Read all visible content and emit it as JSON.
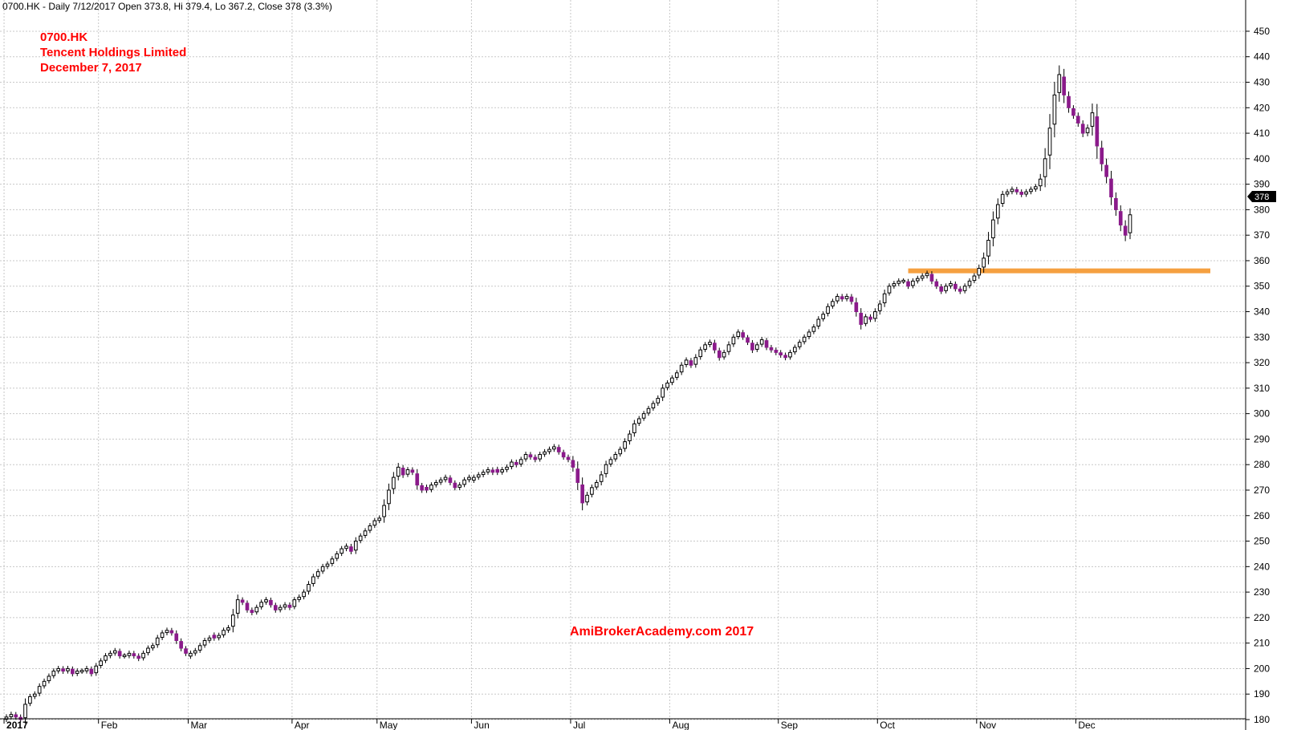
{
  "header": {
    "info": "0700.HK - Daily 7/12/2017 Open 373.8, Hi 379.4, Lo 367.2, Close 378 (3.3%)"
  },
  "titles": [
    "0700.HK",
    "Tencent Holdings Limited",
    "December 7, 2017"
  ],
  "watermark": "AmiBrokerAcademy.com  2017",
  "colors": {
    "up_fill": "#ffffff",
    "down_fill": "#8b1a8b",
    "wick": "#000000",
    "resistance": "#f5a040",
    "title": "#ff0000",
    "last_label_bg": "#000000"
  },
  "chart_data": {
    "type": "candlestick",
    "symbol": "0700.HK",
    "ylim": [
      175,
      452
    ],
    "yticks": [
      180,
      190,
      200,
      210,
      220,
      230,
      240,
      250,
      260,
      270,
      280,
      290,
      300,
      310,
      320,
      330,
      340,
      350,
      360,
      370,
      380,
      390,
      400,
      410,
      420,
      430,
      440,
      450
    ],
    "y_axis_side": "right",
    "grid": true,
    "months": [
      {
        "label": "2017",
        "bold": true
      },
      {
        "label": "Feb"
      },
      {
        "label": "Mar"
      },
      {
        "label": "Apr"
      },
      {
        "label": "May"
      },
      {
        "label": "Jun"
      },
      {
        "label": "Jul"
      },
      {
        "label": "Aug"
      },
      {
        "label": "Sep"
      },
      {
        "label": "Oct"
      },
      {
        "label": "Nov"
      },
      {
        "label": "Dec"
      }
    ],
    "month_start_index": [
      0,
      20,
      39,
      61,
      79,
      99,
      120,
      141,
      164,
      185,
      206,
      227
    ],
    "last_value": "378",
    "resistance": {
      "value": 356,
      "from_index": 191,
      "to_index": 255
    },
    "close": [
      181,
      182,
      181,
      180,
      186,
      189,
      190,
      193,
      195,
      197,
      199,
      200,
      199,
      200,
      198,
      199,
      199,
      200,
      198,
      201,
      203,
      205,
      206,
      207,
      205,
      205,
      206,
      205,
      204,
      206,
      208,
      209,
      212,
      214,
      215,
      214,
      211,
      208,
      206,
      206,
      207,
      209,
      211,
      212,
      212,
      213,
      215,
      216,
      221,
      227,
      226,
      223,
      222,
      224,
      226,
      227,
      225,
      223,
      224,
      225,
      224,
      227,
      228,
      230,
      233,
      236,
      238,
      240,
      241,
      243,
      245,
      247,
      248,
      246,
      250,
      252,
      254,
      256,
      258,
      259,
      264,
      270,
      275,
      279,
      276,
      278,
      277,
      272,
      270,
      270,
      272,
      273,
      274,
      275,
      273,
      271,
      272,
      274,
      275,
      275,
      276,
      277,
      278,
      277,
      277,
      278,
      279,
      281,
      280,
      282,
      284,
      283,
      282,
      284,
      285,
      286,
      287,
      285,
      283,
      282,
      279,
      273,
      265,
      268,
      271,
      273,
      276,
      280,
      282,
      284,
      286,
      289,
      292,
      296,
      298,
      300,
      302,
      304,
      306,
      310,
      312,
      314,
      316,
      319,
      321,
      319,
      322,
      325,
      327,
      328,
      325,
      322,
      324,
      327,
      330,
      332,
      330,
      328,
      325,
      327,
      329,
      326,
      325,
      324,
      323,
      322,
      324,
      326,
      328,
      330,
      332,
      334,
      337,
      339,
      342,
      344,
      346,
      345,
      346,
      344,
      340,
      335,
      338,
      337,
      340,
      343,
      347,
      350,
      351,
      352,
      352,
      350,
      352,
      353,
      354,
      355,
      352,
      350,
      348,
      350,
      351,
      349,
      348,
      350,
      352,
      354,
      357,
      361,
      368,
      376,
      382,
      386,
      387,
      388,
      387,
      386,
      387,
      388,
      389,
      392,
      400,
      412,
      425,
      433,
      425,
      420,
      417,
      414,
      410,
      412,
      418,
      405,
      398,
      393,
      385,
      380,
      374,
      370,
      378
    ]
  }
}
